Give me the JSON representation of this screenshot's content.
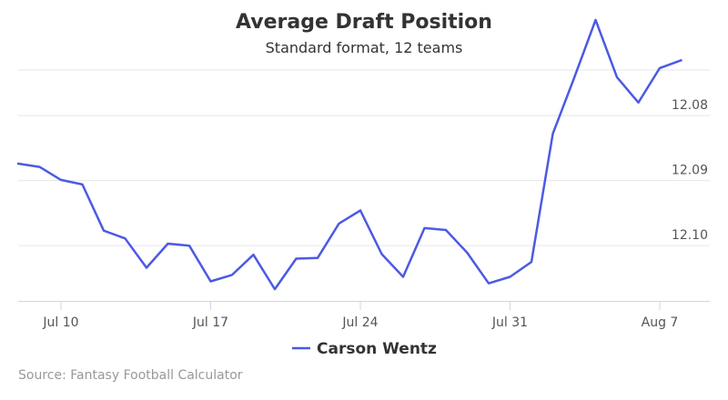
{
  "chart_data": {
    "type": "line",
    "title": "Average Draft Position",
    "subtitle": "Standard format, 12 teams",
    "xlabel": "",
    "ylabel": "",
    "x_ticks": [
      "Jul 10",
      "Jul 17",
      "Jul 24",
      "Jul 31",
      "Aug 7"
    ],
    "x_tick_positions": [
      "2023-07-10",
      "2023-07-17",
      "2023-07-24",
      "2023-07-31",
      "2023-08-07"
    ],
    "y_ticks": [
      "12.08",
      "12.09",
      "12.10"
    ],
    "y_tick_values": [
      12.08,
      12.09,
      12.1
    ],
    "y_reversed": true,
    "ylim": [
      12.073,
      12.1085
    ],
    "grid": true,
    "legend_position": "bottom-center",
    "colors": {
      "series": "#4c5ae3",
      "grid": "#e6e6e6",
      "axis": "#ccd6eb"
    },
    "series": [
      {
        "name": "Carson Wentz",
        "x": [
          "2023-07-08",
          "2023-07-09",
          "2023-07-10",
          "2023-07-11",
          "2023-07-12",
          "2023-07-13",
          "2023-07-14",
          "2023-07-15",
          "2023-07-16",
          "2023-07-17",
          "2023-07-18",
          "2023-07-19",
          "2023-07-20",
          "2023-07-21",
          "2023-07-22",
          "2023-07-23",
          "2023-07-24",
          "2023-07-25",
          "2023-07-26",
          "2023-07-27",
          "2023-07-28",
          "2023-07-29",
          "2023-07-30",
          "2023-07-31",
          "2023-08-01",
          "2023-08-02",
          "2023-08-03",
          "2023-08-04",
          "2023-08-05",
          "2023-08-06",
          "2023-08-07",
          "2023-08-08"
        ],
        "values": [
          12.0874,
          12.0879,
          12.0899,
          12.0906,
          12.0977,
          12.0989,
          12.1034,
          12.0997,
          12.1,
          12.1055,
          12.1045,
          12.1014,
          12.1067,
          12.102,
          12.1019,
          12.0966,
          12.0946,
          12.1013,
          12.1048,
          12.0973,
          12.0976,
          12.1011,
          12.1058,
          12.1048,
          12.1025,
          12.0828,
          12.0742,
          12.0653,
          12.0741,
          12.078,
          12.0727,
          12.0715
        ]
      }
    ]
  },
  "source": "Source: Fantasy Football Calculator"
}
